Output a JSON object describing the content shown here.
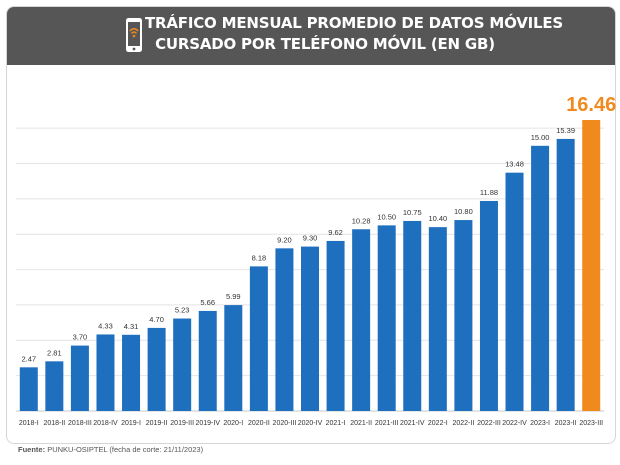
{
  "header": {
    "title_line1": "TRÁFICO MENSUAL PROMEDIO DE DATOS MÓVILES",
    "title_line2": "CURSADO POR TELÉFONO MÓVIL (EN GB)",
    "icon": "smartphone-wifi-icon"
  },
  "footer": {
    "source_label": "Fuente:",
    "source_text": "PUNKU-OSIPTEL (fecha de corte: 21/11/2023)"
  },
  "colors": {
    "header_bg": "#565656",
    "bar": "#1f6fbf",
    "highlight_bar": "#f18a1e",
    "highlight_label": "#f18a1e",
    "grid": "#e4e4e4"
  },
  "chart_data": {
    "type": "bar",
    "title": "TRÁFICO MENSUAL PROMEDIO DE DATOS MÓVILES CURSADO POR TELÉFONO MÓVIL (EN GB)",
    "xlabel": "",
    "ylabel": "",
    "ylim": [
      0,
      18
    ],
    "grid": true,
    "categories": [
      "2018-I",
      "2018-II",
      "2018-III",
      "2018-IV",
      "2019-I",
      "2019-II",
      "2019-III",
      "2019-IV",
      "2020-I",
      "2020-II",
      "2020-III",
      "2020-IV",
      "2021-I",
      "2021-II",
      "2021-III",
      "2021-IV",
      "2022-I",
      "2022-II",
      "2022-III",
      "2022-IV",
      "2023-I",
      "2023-II",
      "2023-III"
    ],
    "values": [
      2.47,
      2.81,
      3.7,
      4.33,
      4.31,
      4.7,
      5.23,
      5.66,
      5.99,
      8.18,
      9.2,
      9.3,
      9.62,
      10.28,
      10.5,
      10.75,
      10.4,
      10.8,
      11.88,
      13.48,
      15.0,
      15.39,
      16.46
    ],
    "value_labels": [
      "2.47",
      "2.81",
      "3.70",
      "4.33",
      "4.31",
      "4.70",
      "5.23",
      "5.66",
      "5.99",
      "8.18",
      "9.20",
      "9.30",
      "9.62",
      "10.28",
      "10.50",
      "10.75",
      "10.40",
      "10.80",
      "11.88",
      "13.48",
      "15.00",
      "15.39",
      "16.46"
    ],
    "highlight_index": 22
  }
}
